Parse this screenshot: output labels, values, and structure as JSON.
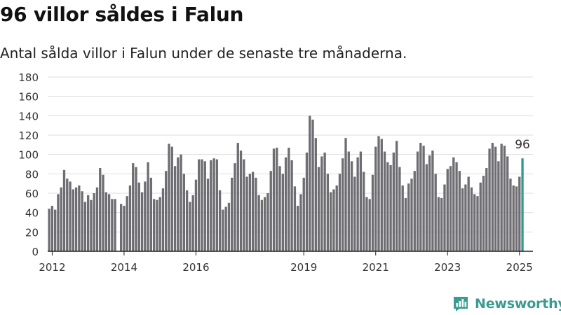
{
  "header": {
    "title": "96 villor såldes i Falun",
    "subtitle": "Antal sålda villor i Falun under de senaste tre månaderna."
  },
  "brand": {
    "name": "Newsworthy"
  },
  "colors": {
    "bar": "#6e6d72",
    "highlight": "#2a9d8f",
    "grid": "#dddddd",
    "axis": "#222222",
    "brand": "#3a9b91"
  },
  "chart_data": {
    "type": "bar",
    "ylim": [
      0,
      180
    ],
    "yticks": [
      0,
      20,
      40,
      60,
      80,
      100,
      120,
      140,
      160,
      180
    ],
    "xticks": [
      "2012",
      "2014",
      "2016",
      "2019",
      "2021",
      "2023",
      "2025"
    ],
    "grid": true,
    "highlight_label": "96",
    "highlight_last": true,
    "values": [
      44,
      47,
      43,
      59,
      66,
      84,
      75,
      72,
      64,
      66,
      68,
      62,
      51,
      58,
      53,
      60,
      66,
      86,
      79,
      61,
      59,
      54,
      54,
      0,
      49,
      47,
      57,
      68,
      91,
      87,
      71,
      61,
      72,
      92,
      76,
      54,
      53,
      56,
      65,
      83,
      111,
      108,
      88,
      97,
      100,
      80,
      63,
      51,
      58,
      74,
      95,
      95,
      93,
      75,
      94,
      96,
      95,
      63,
      43,
      46,
      50,
      76,
      91,
      112,
      104,
      95,
      77,
      80,
      82,
      76,
      58,
      53,
      56,
      60,
      83,
      106,
      107,
      88,
      80,
      97,
      107,
      94,
      67,
      47,
      59,
      76,
      102,
      140,
      136,
      117,
      87,
      98,
      102,
      80,
      61,
      64,
      68,
      80,
      96,
      117,
      103,
      93,
      77,
      97,
      103,
      82,
      56,
      54,
      79,
      108,
      119,
      116,
      103,
      92,
      89,
      102,
      114,
      87,
      68,
      55,
      70,
      75,
      83,
      103,
      112,
      109,
      90,
      99,
      104,
      80,
      56,
      55,
      69,
      85,
      88,
      97,
      92,
      83,
      65,
      69,
      77,
      66,
      59,
      57,
      71,
      78,
      86,
      106,
      112,
      108,
      93,
      111,
      109,
      98,
      75,
      68,
      67,
      77,
      96
    ],
    "x_start": "2011-12",
    "x_end": "2025-06"
  }
}
